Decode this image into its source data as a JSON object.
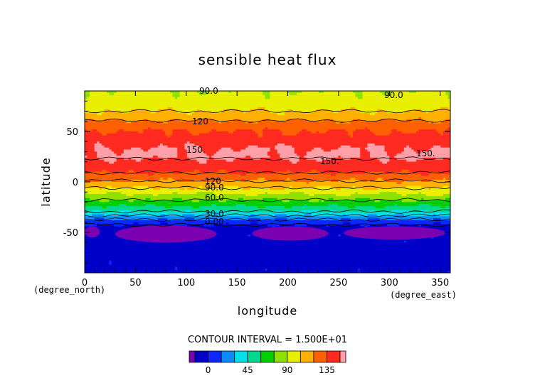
{
  "chart_data": {
    "type": "heatmap",
    "title": "sensible heat flux",
    "xlabel": "longitude",
    "ylabel": "latitude",
    "x_unit_label": "(degree_east)",
    "y_unit_label": "(degree_north)",
    "xlim": [
      0,
      360
    ],
    "ylim": [
      -90,
      90
    ],
    "x_ticks": [
      "0",
      "50",
      "100",
      "150",
      "200",
      "250",
      "300",
      "350"
    ],
    "y_ticks": [
      "-50",
      "0",
      "50"
    ],
    "contour_interval_text": "CONTOUR INTERVAL = 1.500E+01",
    "contour_labels": [
      "90.0",
      "90.0",
      "120",
      "150.",
      "150.",
      "150.",
      "120",
      "90.0",
      "60.0",
      "30.0",
      "0.00"
    ],
    "colorbar": {
      "levels": [
        -15,
        0,
        15,
        30,
        45,
        60,
        75,
        90,
        105,
        120,
        135,
        150
      ],
      "tick_labels": [
        "0",
        "45",
        "90",
        "135"
      ],
      "colors": [
        "#7a00b0",
        "#0000c8",
        "#0a28ff",
        "#0a8cff",
        "#00e0e8",
        "#00d890",
        "#00d000",
        "#90e000",
        "#e8f000",
        "#ffb000",
        "#ff6000",
        "#ff2a20",
        "#ffa0a8"
      ]
    },
    "zonal_profile": {
      "latitude": [
        -90,
        -45,
        -40,
        -36,
        -32,
        -28,
        -24,
        -20,
        -16,
        -12,
        -8,
        -4,
        0,
        4,
        8,
        12,
        18,
        25,
        34,
        42,
        50,
        58,
        66,
        74,
        82,
        88,
        90
      ],
      "value": [
        -5,
        -5,
        5,
        20,
        35,
        50,
        60,
        70,
        80,
        90,
        100,
        110,
        118,
        125,
        133,
        140,
        145,
        152,
        150,
        142,
        135,
        125,
        110,
        100,
        95,
        92,
        90
      ]
    },
    "purple_blobs": [
      {
        "lon_range": [
          0,
          15
        ],
        "lat_range": [
          -55,
          -44
        ]
      },
      {
        "lon_range": [
          30,
          130
        ],
        "lat_range": [
          -60,
          -43
        ]
      },
      {
        "lon_range": [
          165,
          240
        ],
        "lat_range": [
          -58,
          -44
        ]
      },
      {
        "lon_range": [
          255,
          355
        ],
        "lat_range": [
          -57,
          -44
        ]
      }
    ]
  }
}
